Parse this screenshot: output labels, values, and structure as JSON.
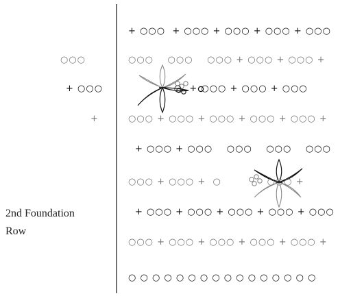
{
  "title": "",
  "left_label": {
    "line1": "2nd Foundation",
    "line2": "Row"
  },
  "left_symbols": [
    {
      "text": "○○○",
      "color": "#777777"
    },
    {
      "text": "+ ○○○",
      "color": "#111111"
    },
    {
      "text": "+",
      "color": "#777777"
    }
  ],
  "rows": [
    {
      "text": "+ ○○○  + ○○○ + ○○○ + ○○○ + ○○○",
      "color": "#111111"
    },
    {
      "text": "○○○    ○○○    ○○○ + ○○○ + ○○○ +",
      "color": "#777777"
    },
    {
      "text": "             ○  + ○○○ + ○○○ + ○○○",
      "color": "#111111"
    },
    {
      "text": "○○○ + ○○○ + ○○○ + ○○○ + ○○○ +",
      "color": "#777777"
    },
    {
      "text": "+ ○○○ + ○○○    ○○○    ○○○    ○○○",
      "color": "#111111"
    },
    {
      "text": "○○○ + ○○○ +  ○             ○○○ +",
      "color": "#777777"
    },
    {
      "text": "+ ○○○ + ○○○ + ○○○ + ○○○ + ○○○",
      "color": "#111111"
    },
    {
      "text": "○○○ + ○○○ + ○○○ + ○○○ + ○○○ +",
      "color": "#777777"
    },
    {
      "text": "○ ○ ○ ○ ○ ○ ○ ○ ○ ○ ○ ○ ○ ○ ○ ○",
      "color": "#111111"
    }
  ],
  "colors": {
    "dark": "#111111",
    "light": "#777777"
  }
}
